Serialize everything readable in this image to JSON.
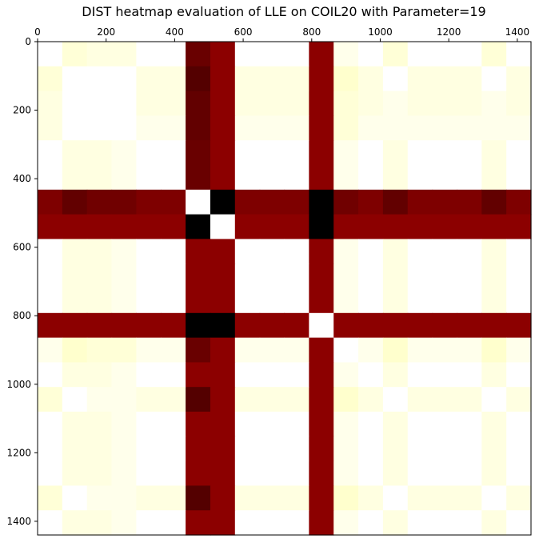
{
  "chart_data": {
    "type": "heatmap",
    "title": "DIST heatmap evaluation of LLE on COIL20 with Parameter=19",
    "xlabel": "",
    "ylabel": "",
    "colormap": "hot (reversed)",
    "xlim": [
      0,
      1440
    ],
    "ylim": [
      1440,
      0
    ],
    "x_ticks": [
      0,
      200,
      400,
      600,
      800,
      1000,
      1200,
      1400
    ],
    "y_ticks": [
      0,
      200,
      400,
      600,
      800,
      1000,
      1200,
      1400
    ],
    "x_tick_position": "top",
    "grid": false,
    "block_size": 72,
    "num_blocks": 20,
    "matrix": [
      [
        0.0,
        0.04,
        0.03,
        0.03,
        0.0,
        0.0,
        0.85,
        0.8,
        0.0,
        0.0,
        0.0,
        0.8,
        0.02,
        0.0,
        0.04,
        0.0,
        0.0,
        0.0,
        0.04,
        0.0
      ],
      [
        0.04,
        0.0,
        0.0,
        0.0,
        0.03,
        0.03,
        0.88,
        0.8,
        0.03,
        0.03,
        0.03,
        0.8,
        0.05,
        0.03,
        0.0,
        0.03,
        0.03,
        0.03,
        0.0,
        0.03
      ],
      [
        0.03,
        0.0,
        0.0,
        0.0,
        0.03,
        0.03,
        0.86,
        0.8,
        0.03,
        0.03,
        0.03,
        0.8,
        0.04,
        0.03,
        0.02,
        0.03,
        0.03,
        0.03,
        0.02,
        0.03
      ],
      [
        0.03,
        0.0,
        0.0,
        0.0,
        0.02,
        0.02,
        0.86,
        0.8,
        0.02,
        0.02,
        0.02,
        0.8,
        0.04,
        0.02,
        0.02,
        0.02,
        0.02,
        0.02,
        0.02,
        0.02
      ],
      [
        0.0,
        0.03,
        0.03,
        0.02,
        0.0,
        0.0,
        0.85,
        0.8,
        0.0,
        0.0,
        0.0,
        0.8,
        0.02,
        0.0,
        0.03,
        0.0,
        0.0,
        0.0,
        0.03,
        0.0
      ],
      [
        0.0,
        0.03,
        0.03,
        0.02,
        0.0,
        0.0,
        0.85,
        0.8,
        0.0,
        0.0,
        0.0,
        0.8,
        0.02,
        0.0,
        0.03,
        0.0,
        0.0,
        0.0,
        0.03,
        0.0
      ],
      [
        0.82,
        0.86,
        0.84,
        0.84,
        0.82,
        0.82,
        0.0,
        1.0,
        0.82,
        0.82,
        0.82,
        1.0,
        0.84,
        0.82,
        0.86,
        0.82,
        0.82,
        0.82,
        0.86,
        0.82
      ],
      [
        0.8,
        0.8,
        0.8,
        0.8,
        0.8,
        0.8,
        1.0,
        0.0,
        0.8,
        0.8,
        0.8,
        1.0,
        0.8,
        0.8,
        0.8,
        0.8,
        0.8,
        0.8,
        0.8,
        0.8
      ],
      [
        0.0,
        0.03,
        0.03,
        0.02,
        0.0,
        0.0,
        0.8,
        0.8,
        0.0,
        0.0,
        0.0,
        0.8,
        0.02,
        0.0,
        0.03,
        0.0,
        0.0,
        0.0,
        0.03,
        0.0
      ],
      [
        0.0,
        0.03,
        0.03,
        0.02,
        0.0,
        0.0,
        0.8,
        0.8,
        0.0,
        0.0,
        0.0,
        0.8,
        0.02,
        0.0,
        0.03,
        0.0,
        0.0,
        0.0,
        0.03,
        0.0
      ],
      [
        0.0,
        0.03,
        0.03,
        0.02,
        0.0,
        0.0,
        0.8,
        0.8,
        0.0,
        0.0,
        0.0,
        0.8,
        0.02,
        0.0,
        0.03,
        0.0,
        0.0,
        0.0,
        0.03,
        0.0
      ],
      [
        0.8,
        0.8,
        0.8,
        0.8,
        0.8,
        0.8,
        1.0,
        1.0,
        0.8,
        0.8,
        0.8,
        0.0,
        0.8,
        0.8,
        0.8,
        0.8,
        0.8,
        0.8,
        0.8,
        0.8
      ],
      [
        0.02,
        0.05,
        0.04,
        0.04,
        0.02,
        0.02,
        0.85,
        0.8,
        0.02,
        0.02,
        0.02,
        0.8,
        0.0,
        0.02,
        0.05,
        0.02,
        0.02,
        0.02,
        0.05,
        0.02
      ],
      [
        0.0,
        0.03,
        0.03,
        0.02,
        0.0,
        0.0,
        0.8,
        0.8,
        0.0,
        0.0,
        0.0,
        0.8,
        0.02,
        0.0,
        0.03,
        0.0,
        0.0,
        0.0,
        0.03,
        0.0
      ],
      [
        0.04,
        0.0,
        0.02,
        0.02,
        0.03,
        0.03,
        0.88,
        0.8,
        0.03,
        0.03,
        0.03,
        0.8,
        0.05,
        0.03,
        0.0,
        0.03,
        0.03,
        0.03,
        0.0,
        0.03
      ],
      [
        0.0,
        0.03,
        0.03,
        0.02,
        0.0,
        0.0,
        0.8,
        0.8,
        0.0,
        0.0,
        0.0,
        0.8,
        0.02,
        0.0,
        0.03,
        0.0,
        0.0,
        0.0,
        0.03,
        0.0
      ],
      [
        0.0,
        0.03,
        0.03,
        0.02,
        0.0,
        0.0,
        0.8,
        0.8,
        0.0,
        0.0,
        0.0,
        0.8,
        0.02,
        0.0,
        0.03,
        0.0,
        0.0,
        0.0,
        0.03,
        0.0
      ],
      [
        0.0,
        0.03,
        0.03,
        0.02,
        0.0,
        0.0,
        0.8,
        0.8,
        0.0,
        0.0,
        0.0,
        0.8,
        0.02,
        0.0,
        0.03,
        0.0,
        0.0,
        0.0,
        0.03,
        0.0
      ],
      [
        0.04,
        0.0,
        0.02,
        0.02,
        0.03,
        0.03,
        0.88,
        0.8,
        0.03,
        0.03,
        0.03,
        0.8,
        0.05,
        0.03,
        0.0,
        0.03,
        0.03,
        0.03,
        0.0,
        0.03
      ],
      [
        0.0,
        0.03,
        0.03,
        0.02,
        0.0,
        0.0,
        0.8,
        0.8,
        0.0,
        0.0,
        0.0,
        0.8,
        0.02,
        0.0,
        0.03,
        0.0,
        0.0,
        0.0,
        0.03,
        0.0
      ]
    ]
  }
}
